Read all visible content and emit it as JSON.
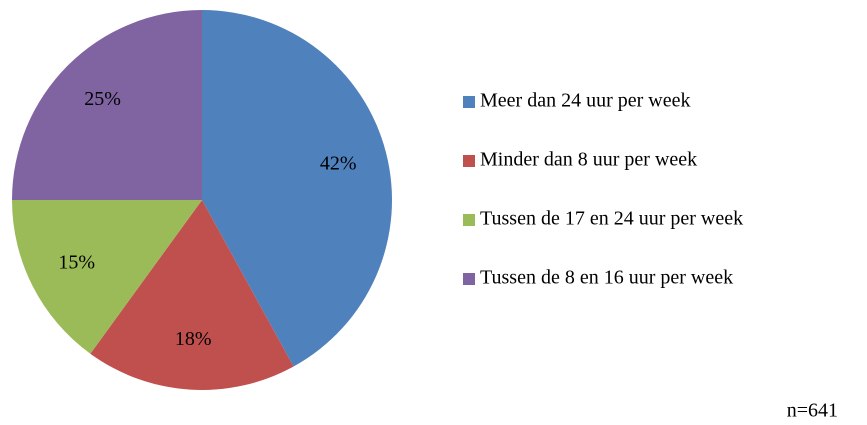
{
  "chart_data": {
    "type": "pie",
    "categories": [
      "Meer dan 24 uur per week",
      "Minder dan 8 uur per week",
      "Tussen de 17 en 24 uur per week",
      "Tussen de 8 en 16 uur per week"
    ],
    "values": [
      42,
      18,
      15,
      25
    ],
    "value_labels": [
      "42%",
      "18%",
      "15%",
      "25%"
    ],
    "colors": [
      "#4f81bd",
      "#c0504d",
      "#9bbb59",
      "#8064a2"
    ],
    "legend": "right",
    "annotation": "n=641"
  }
}
